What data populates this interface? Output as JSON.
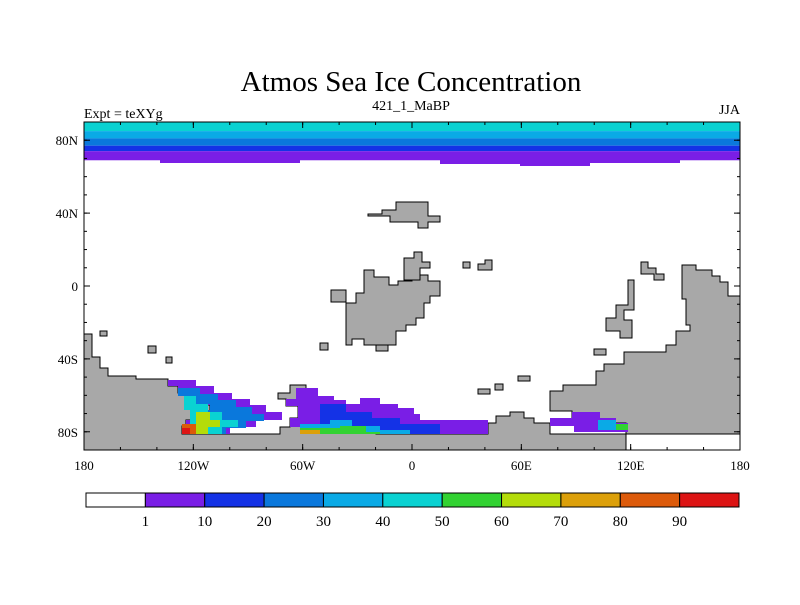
{
  "chart_data": {
    "type": "heatmap",
    "title": "Atmos Sea Ice Concentration",
    "left_string": "Expt = teXYg",
    "center_string": "421_1_MaBP",
    "right_string": "JJA",
    "x_ticks": [
      "180",
      "120W",
      "60W",
      "0",
      "60E",
      "120E",
      "180"
    ],
    "y_ticks": [
      "80N",
      "40N",
      "0",
      "40S",
      "80S"
    ],
    "xlim": [
      -180,
      180
    ],
    "ylim": [
      -90,
      90
    ],
    "colorbar": {
      "labels": [
        "1",
        "10",
        "20",
        "30",
        "40",
        "50",
        "60",
        "70",
        "80",
        "90"
      ],
      "colors": [
        "#ffffff",
        "#7a1ee6",
        "#1432e6",
        "#0a78dc",
        "#0aaae6",
        "#0ad2d2",
        "#32d232",
        "#b4dc0a",
        "#dca00a",
        "#dc5a0a",
        "#dc1414"
      ]
    },
    "land_color": "#a8a8a8",
    "arctic_ice_bands": [
      {
        "lat_top": 90,
        "lat_bottom": 85,
        "color": "#0ad2d2"
      },
      {
        "lat_top": 85,
        "lat_bottom": 81,
        "color": "#0aaae6"
      },
      {
        "lat_top": 81,
        "lat_bottom": 77,
        "color": "#0a78dc"
      },
      {
        "lat_top": 77,
        "lat_bottom": 74,
        "color": "#1432e6"
      },
      {
        "lat_top": 74,
        "lat_bottom": 69,
        "color": "#7a1ee6"
      }
    ]
  }
}
